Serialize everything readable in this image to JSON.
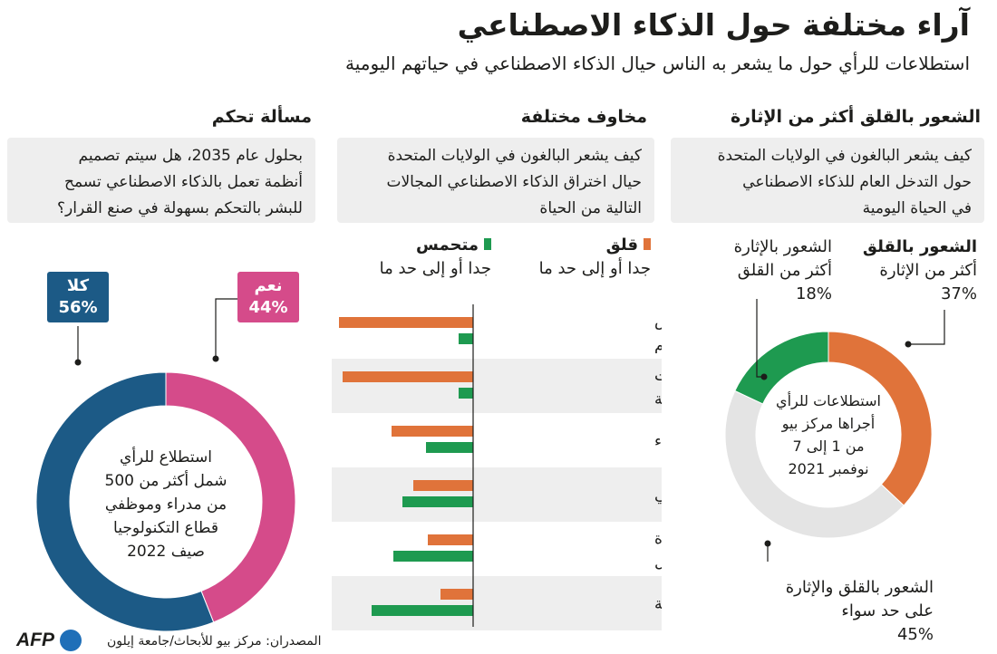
{
  "header": {
    "title": "آراء مختلفة حول الذكاء الاصطناعي",
    "subtitle": "استطلاعات للرأي حول ما يشعر به الناس حيال الذكاء الاصطناعي في حياتهم اليومية"
  },
  "sections": {
    "anxiety": {
      "heading": "الشعور بالقلق أكثر من الإثارة",
      "question": [
        "كيف يشعر البالغون في الولايات المتحدة",
        "حول التدخل العام للذكاء الاصطناعي",
        "في الحياة اليومية"
      ],
      "label_anxious": [
        "الشعور بالقلق",
        "أكثر من الإثارة",
        "37%"
      ],
      "label_excited": [
        "الشعور بالإثارة",
        "أكثر من القلق",
        "18%"
      ],
      "label_both": [
        "الشعور بالقلق والإثارة",
        "على حد سواء",
        "45%"
      ],
      "center_text": [
        "استطلاعات للرأي",
        "أجراها مركز بيو",
        "من 1 إلى 7",
        "نوفمبر 2021"
      ]
    },
    "fears": {
      "heading": "مخاوف مختلفة",
      "question": [
        "كيف يشعر البالغون في الولايات المتحدة",
        "حيال اختراق الذكاء الاصطناعي المجالات",
        "التالية من الحياة"
      ],
      "legend_worried": [
        "قلق",
        "جدا أو إلى حد ما"
      ],
      "legend_enthusiastic": [
        "متحمس",
        "جدا أو إلى حد ما"
      ]
    },
    "control": {
      "heading": "مسألة تحكم",
      "question": [
        "بحلول عام 2035، هل سيتم تصميم",
        "أنظمة تعمل بالذكاء الاصطناعي تسمح",
        "للبشر بالتحكم بسهولة في صنع القرار؟"
      ],
      "no_badge": [
        "كلا",
        "56%"
      ],
      "yes_badge": [
        "نعم",
        "44%"
      ],
      "center_text": [
        "استطلاع للرأي",
        "شمل أكثر من 500",
        "من مدراء وموظفي",
        "قطاع التكنولوجيا",
        "صيف 2022"
      ]
    }
  },
  "footer": {
    "source": "المصدران: مركز بيو للأبحاث/جامعة إيلون",
    "logo": "AFP"
  },
  "colors": {
    "orange": "#e0733a",
    "green": "#1e9a50",
    "grey": "#e4e4e4",
    "blue": "#1c5a86",
    "pink": "#d54b8a",
    "dark": "#1d1d1b"
  },
  "chart_data": [
    {
      "type": "pie",
      "categories": [
        "الشعور بالقلق أكثر من الإثارة",
        "الشعور بالإثارة أكثر من القلق",
        "الشعور بالقلق والإثارة على حد سواء"
      ],
      "values": [
        37,
        18,
        45
      ]
    },
    {
      "type": "bar",
      "categories": [
        "معرفة أفكار الناس وسلوكياتهم",
        "اتخاذ قرارات حياتية مهمة",
        "مكالمات خدمة العملاء",
        "التشخيص الطبي",
        "القيام بالمهام المتكررة في أماكن العمل",
        "القيام بالأعمال المنزلية"
      ],
      "category_lines": [
        [
          "معرفة أفكار الناس",
          "وسلوكياتهم"
        ],
        [
          "اتخاذ قرارات",
          "حياتية مهمة"
        ],
        [
          "مكالمات خدمة العملاء"
        ],
        [
          "التشخيص الطبي"
        ],
        [
          "القيام بالمهام المتكررة",
          "في أماكن العمل"
        ],
        [
          "القيام بالأعمال المنزلية"
        ]
      ],
      "series": [
        {
          "name": "قلق",
          "values": [
            74,
            72,
            45,
            33,
            25,
            18
          ]
        },
        {
          "name": "متحمس",
          "values": [
            8,
            8,
            26,
            39,
            44,
            56
          ]
        }
      ]
    },
    {
      "type": "pie",
      "categories": [
        "نعم",
        "كلا"
      ],
      "values": [
        44,
        56
      ]
    }
  ]
}
